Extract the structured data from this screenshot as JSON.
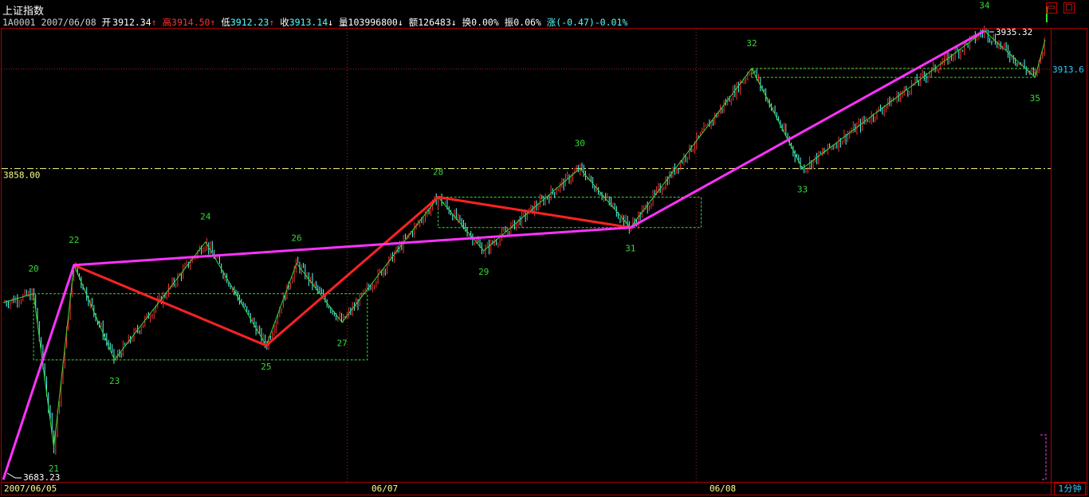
{
  "header": {
    "title": "上证指数",
    "code": "1A0001",
    "date": "2007/06/08",
    "open": {
      "label": "开",
      "value": "3912.34",
      "arrow": "↑"
    },
    "high": {
      "label": "高",
      "value": "3914.50",
      "arrow": "↑"
    },
    "low": {
      "label": "低",
      "value": "3912.23",
      "arrow": "↑"
    },
    "close": {
      "label": "收",
      "value": "3913.14",
      "arrow": "↓"
    },
    "volume": {
      "label": "量",
      "value": "103996800",
      "arrow": "↓"
    },
    "amount": {
      "label": "额",
      "value": "126483",
      "arrow": "↓"
    },
    "turnover": {
      "label": "换",
      "value": "0.00%"
    },
    "amplitude": {
      "label": "振",
      "value": "0.06%"
    },
    "change": {
      "label": "涨",
      "value": "(-0.47)-0.01%"
    }
  },
  "window_buttons": {
    "restore": "▭",
    "maximize": "□"
  },
  "period_button": "1分钟",
  "colors": {
    "background": "#000000",
    "up_candle": "#ff3333",
    "down_candle": "#54ffff",
    "wave_line": "#33dd33",
    "primary_trend": "#ff2222",
    "major_trend": "#ff33ff",
    "label": "#33dd33",
    "dotted_guide": "#aa2222",
    "level_line": "#ffff88"
  },
  "chart_data": {
    "type": "line",
    "ylim": [
      3683.23,
      3935.32
    ],
    "x_axis_labels": [
      {
        "text": "2007/06/05",
        "session": 0
      },
      {
        "text": "06/07",
        "session": 1
      },
      {
        "text": "06/08",
        "session": 2
      }
    ],
    "price_annotations": {
      "max": "3935.32",
      "min": "3683.23",
      "last": "3913.6",
      "level": "3858.00"
    },
    "level_line_value": 3858.0,
    "last_value": 3913.6,
    "max_value": 3935.32,
    "min_value": 3683.23,
    "wave_pivots": [
      {
        "label": "",
        "x": 0,
        "y": 3783
      },
      {
        "label": "20",
        "x": 3,
        "y": 3788
      },
      {
        "label": "21",
        "x": 5,
        "y": 3702
      },
      {
        "label": "22",
        "x": 7,
        "y": 3804
      },
      {
        "label": "23",
        "x": 11,
        "y": 3751
      },
      {
        "label": "24",
        "x": 20,
        "y": 3817
      },
      {
        "label": "25",
        "x": 26,
        "y": 3759
      },
      {
        "label": "26",
        "x": 29,
        "y": 3805
      },
      {
        "label": "27",
        "x": 33.5,
        "y": 3772
      },
      {
        "label": "28",
        "x": 43,
        "y": 3842
      },
      {
        "label": "29",
        "x": 47.5,
        "y": 3812
      },
      {
        "label": "30",
        "x": 57,
        "y": 3858
      },
      {
        "label": "31",
        "x": 62,
        "y": 3825
      },
      {
        "label": "32",
        "x": 74,
        "y": 3914
      },
      {
        "label": "33",
        "x": 79,
        "y": 3858
      },
      {
        "label": "34",
        "x": 97,
        "y": 3935
      },
      {
        "label": "35",
        "x": 102,
        "y": 3909
      },
      {
        "label": "",
        "x": 103,
        "y": 3930
      }
    ],
    "primary_trend": [
      {
        "x": 7,
        "y": 3804
      },
      {
        "x": 26,
        "y": 3759
      },
      {
        "x": 43,
        "y": 3842
      },
      {
        "x": 62,
        "y": 3825
      }
    ],
    "major_trend": [
      {
        "x": 0,
        "y": 3684
      },
      {
        "x": 7,
        "y": 3804
      },
      {
        "x": 62,
        "y": 3825
      },
      {
        "x": 97,
        "y": 3935
      }
    ],
    "boxes": [
      {
        "x1": 3,
        "x2": 36,
        "y1": 3788,
        "y2": 3751
      },
      {
        "x1": 43,
        "x2": 69,
        "y1": 3842,
        "y2": 3825
      },
      {
        "x1": 74,
        "x2": 102,
        "y1": 3914,
        "y2": 3909
      }
    ],
    "x_range": [
      0,
      103
    ]
  }
}
